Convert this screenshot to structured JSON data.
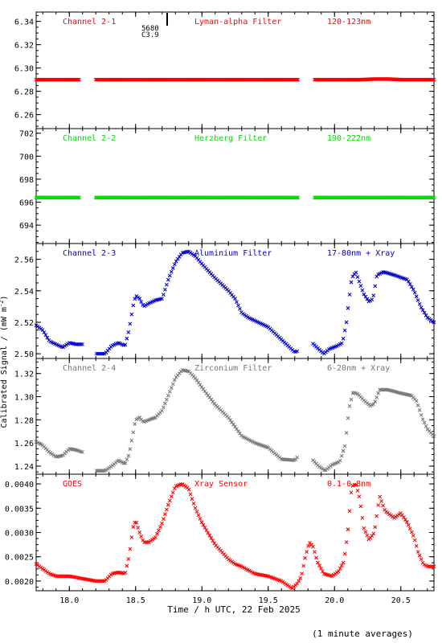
{
  "figure": {
    "ylabel": "Calibrated Signal / (mW m",
    "ylabel_sup": "-2",
    "ylabel_end": ")",
    "xlabel": "Time / h UTC, 22 Feb 2025",
    "footnote": "(1 minute averages)",
    "marker_text_1": "5680",
    "marker_text_2": "C3.9"
  },
  "chart_data": [
    {
      "type": "scatter",
      "title_left": "Channel 2-1",
      "title_mid": "Lyman-alpha Filter",
      "title_right": "120-123nm",
      "color": "#ff0000",
      "xlim": [
        17.75,
        20.75
      ],
      "ylim": [
        6.248,
        6.348
      ],
      "yticks": [
        6.26,
        6.28,
        6.3,
        6.32,
        6.34
      ],
      "yticklabels": [
        "6.26",
        "6.28",
        "6.30",
        "6.32",
        "6.34"
      ],
      "gaps": [
        [
          18.08,
          18.2
        ],
        [
          19.73,
          19.85
        ]
      ],
      "points": [
        [
          17.75,
          6.29
        ],
        [
          18.5,
          6.29
        ],
        [
          19.0,
          6.29
        ],
        [
          19.7,
          6.29
        ],
        [
          20.2,
          6.29
        ],
        [
          20.3,
          6.2905
        ],
        [
          20.4,
          6.2905
        ],
        [
          20.5,
          6.29
        ],
        [
          20.75,
          6.29
        ]
      ]
    },
    {
      "type": "scatter",
      "title_left": "Channel 2-2",
      "title_mid": "Herzberg Filter",
      "title_right": "190-222nm",
      "color": "#00dd00",
      "xlim": [
        17.75,
        20.75
      ],
      "ylim": [
        692.4,
        702.4
      ],
      "yticks": [
        694,
        696,
        698,
        700,
        702
      ],
      "yticklabels": [
        "694",
        "696",
        "698",
        "700",
        "702"
      ],
      "gaps": [
        [
          18.08,
          18.2
        ],
        [
          19.73,
          19.85
        ]
      ],
      "points": [
        [
          17.75,
          696.4
        ],
        [
          19.0,
          696.4
        ],
        [
          20.75,
          696.4
        ]
      ]
    },
    {
      "type": "scatter",
      "title_left": "Channel 2-3",
      "title_mid": "Aluminium Filter",
      "title_right": "17-80nm + Xray",
      "color": "#0000cc",
      "xlim": [
        17.75,
        20.75
      ],
      "ylim": [
        2.497,
        2.57
      ],
      "yticks": [
        2.5,
        2.52,
        2.54,
        2.56
      ],
      "yticklabels": [
        "2.50",
        "2.52",
        "2.54",
        "2.56"
      ],
      "gaps": [
        [
          18.11,
          18.2
        ],
        [
          19.73,
          19.83
        ]
      ],
      "points": [
        [
          17.75,
          2.518
        ],
        [
          17.8,
          2.515
        ],
        [
          17.85,
          2.508
        ],
        [
          17.9,
          2.506
        ],
        [
          17.95,
          2.504
        ],
        [
          18.0,
          2.507
        ],
        [
          18.05,
          2.506
        ],
        [
          18.1,
          2.506
        ],
        [
          18.2,
          2.5
        ],
        [
          18.27,
          2.5
        ],
        [
          18.32,
          2.505
        ],
        [
          18.37,
          2.507
        ],
        [
          18.42,
          2.505
        ],
        [
          18.45,
          2.515
        ],
        [
          18.48,
          2.53
        ],
        [
          18.5,
          2.537
        ],
        [
          18.53,
          2.535
        ],
        [
          18.56,
          2.53
        ],
        [
          18.6,
          2.532
        ],
        [
          18.65,
          2.534
        ],
        [
          18.7,
          2.535
        ],
        [
          18.75,
          2.548
        ],
        [
          18.8,
          2.558
        ],
        [
          18.85,
          2.564
        ],
        [
          18.9,
          2.565
        ],
        [
          18.95,
          2.562
        ],
        [
          19.0,
          2.557
        ],
        [
          19.1,
          2.548
        ],
        [
          19.2,
          2.54
        ],
        [
          19.25,
          2.535
        ],
        [
          19.3,
          2.526
        ],
        [
          19.35,
          2.523
        ],
        [
          19.4,
          2.521
        ],
        [
          19.5,
          2.517
        ],
        [
          19.6,
          2.509
        ],
        [
          19.7,
          2.501
        ],
        [
          19.73,
          2.502
        ],
        [
          19.83,
          2.507
        ],
        [
          19.88,
          2.503
        ],
        [
          19.92,
          2.5
        ],
        [
          19.96,
          2.503
        ],
        [
          20.02,
          2.505
        ],
        [
          20.06,
          2.507
        ],
        [
          20.09,
          2.52
        ],
        [
          20.11,
          2.535
        ],
        [
          20.13,
          2.548
        ],
        [
          20.16,
          2.552
        ],
        [
          20.19,
          2.545
        ],
        [
          20.22,
          2.538
        ],
        [
          20.26,
          2.533
        ],
        [
          20.29,
          2.535
        ],
        [
          20.32,
          2.55
        ],
        [
          20.37,
          2.552
        ],
        [
          20.45,
          2.55
        ],
        [
          20.55,
          2.547
        ],
        [
          20.6,
          2.54
        ],
        [
          20.65,
          2.53
        ],
        [
          20.7,
          2.523
        ],
        [
          20.75,
          2.52
        ]
      ]
    },
    {
      "type": "scatter",
      "title_left": "Channel 2-4",
      "title_mid": "Zirconium Filter",
      "title_right": "6-20nm + Xray",
      "color": "#777777",
      "xlim": [
        17.75,
        20.75
      ],
      "ylim": [
        1.233,
        1.333
      ],
      "yticks": [
        1.24,
        1.26,
        1.28,
        1.3,
        1.32
      ],
      "yticklabels": [
        "1.24",
        "1.26",
        "1.28",
        "1.30",
        "1.32"
      ],
      "gaps": [
        [
          18.11,
          18.2
        ],
        [
          19.73,
          19.83
        ]
      ],
      "points": [
        [
          17.75,
          1.261
        ],
        [
          17.8,
          1.258
        ],
        [
          17.85,
          1.252
        ],
        [
          17.9,
          1.248
        ],
        [
          17.95,
          1.249
        ],
        [
          18.0,
          1.255
        ],
        [
          18.05,
          1.254
        ],
        [
          18.1,
          1.252
        ],
        [
          18.2,
          1.236
        ],
        [
          18.27,
          1.236
        ],
        [
          18.32,
          1.24
        ],
        [
          18.37,
          1.245
        ],
        [
          18.42,
          1.242
        ],
        [
          18.45,
          1.25
        ],
        [
          18.48,
          1.268
        ],
        [
          18.5,
          1.28
        ],
        [
          18.53,
          1.282
        ],
        [
          18.56,
          1.278
        ],
        [
          18.6,
          1.28
        ],
        [
          18.65,
          1.282
        ],
        [
          18.7,
          1.288
        ],
        [
          18.75,
          1.302
        ],
        [
          18.8,
          1.316
        ],
        [
          18.85,
          1.323
        ],
        [
          18.9,
          1.322
        ],
        [
          18.95,
          1.316
        ],
        [
          19.0,
          1.308
        ],
        [
          19.1,
          1.293
        ],
        [
          19.2,
          1.282
        ],
        [
          19.25,
          1.274
        ],
        [
          19.3,
          1.266
        ],
        [
          19.4,
          1.26
        ],
        [
          19.5,
          1.256
        ],
        [
          19.6,
          1.246
        ],
        [
          19.7,
          1.245
        ],
        [
          19.73,
          1.249
        ],
        [
          19.83,
          1.246
        ],
        [
          19.88,
          1.24
        ],
        [
          19.93,
          1.236
        ],
        [
          19.98,
          1.241
        ],
        [
          20.04,
          1.244
        ],
        [
          20.08,
          1.258
        ],
        [
          20.11,
          1.29
        ],
        [
          20.14,
          1.304
        ],
        [
          20.18,
          1.302
        ],
        [
          20.22,
          1.297
        ],
        [
          20.27,
          1.292
        ],
        [
          20.3,
          1.294
        ],
        [
          20.34,
          1.306
        ],
        [
          20.4,
          1.306
        ],
        [
          20.5,
          1.303
        ],
        [
          20.58,
          1.301
        ],
        [
          20.62,
          1.296
        ],
        [
          20.66,
          1.282
        ],
        [
          20.7,
          1.272
        ],
        [
          20.75,
          1.266
        ]
      ]
    },
    {
      "type": "scatter",
      "title_left": "GOES",
      "title_mid": "Xray Sensor",
      "title_right": "0.1-0.8nm",
      "color": "#ff0000",
      "xlim": [
        17.75,
        20.75
      ],
      "ylim": [
        0.0018,
        0.0042
      ],
      "yticks": [
        0.002,
        0.0025,
        0.003,
        0.0035,
        0.004
      ],
      "yticklabels": [
        "0.0020",
        "0.0025",
        "0.0030",
        "0.0035",
        "0.0040"
      ],
      "gaps": [],
      "points": [
        [
          17.75,
          0.00235
        ],
        [
          17.8,
          0.00225
        ],
        [
          17.85,
          0.00215
        ],
        [
          17.9,
          0.0021
        ],
        [
          18.0,
          0.0021
        ],
        [
          18.1,
          0.00205
        ],
        [
          18.2,
          0.002
        ],
        [
          18.27,
          0.002
        ],
        [
          18.32,
          0.00215
        ],
        [
          18.37,
          0.00218
        ],
        [
          18.42,
          0.00215
        ],
        [
          18.45,
          0.0025
        ],
        [
          18.48,
          0.0031
        ],
        [
          18.5,
          0.00325
        ],
        [
          18.53,
          0.003
        ],
        [
          18.56,
          0.0028
        ],
        [
          18.6,
          0.0028
        ],
        [
          18.65,
          0.0029
        ],
        [
          18.7,
          0.0032
        ],
        [
          18.75,
          0.0036
        ],
        [
          18.8,
          0.00395
        ],
        [
          18.85,
          0.004
        ],
        [
          18.9,
          0.0039
        ],
        [
          18.95,
          0.0035
        ],
        [
          19.0,
          0.0032
        ],
        [
          19.1,
          0.00275
        ],
        [
          19.2,
          0.00245
        ],
        [
          19.25,
          0.00235
        ],
        [
          19.3,
          0.0023
        ],
        [
          19.4,
          0.00215
        ],
        [
          19.5,
          0.0021
        ],
        [
          19.6,
          0.002
        ],
        [
          19.68,
          0.00185
        ],
        [
          19.72,
          0.00195
        ],
        [
          19.75,
          0.0021
        ],
        [
          19.78,
          0.0025
        ],
        [
          19.81,
          0.0028
        ],
        [
          19.84,
          0.0027
        ],
        [
          19.87,
          0.0024
        ],
        [
          19.92,
          0.00215
        ],
        [
          19.98,
          0.0021
        ],
        [
          20.03,
          0.0022
        ],
        [
          20.07,
          0.0024
        ],
        [
          20.1,
          0.003
        ],
        [
          20.13,
          0.00395
        ],
        [
          20.16,
          0.004
        ],
        [
          20.19,
          0.0037
        ],
        [
          20.22,
          0.0031
        ],
        [
          20.26,
          0.00285
        ],
        [
          20.3,
          0.003
        ],
        [
          20.34,
          0.00375
        ],
        [
          20.38,
          0.00345
        ],
        [
          20.45,
          0.0033
        ],
        [
          20.5,
          0.0034
        ],
        [
          20.55,
          0.0032
        ],
        [
          20.6,
          0.0029
        ],
        [
          20.63,
          0.0026
        ],
        [
          20.67,
          0.00235
        ],
        [
          20.7,
          0.0023
        ],
        [
          20.75,
          0.0023
        ]
      ]
    }
  ],
  "xaxis": {
    "ticks": [
      18.0,
      18.5,
      19.0,
      19.5,
      20.0,
      20.5
    ],
    "ticklabels": [
      "18.0",
      "18.5",
      "19.0",
      "19.5",
      "20.0",
      "20.5"
    ]
  }
}
